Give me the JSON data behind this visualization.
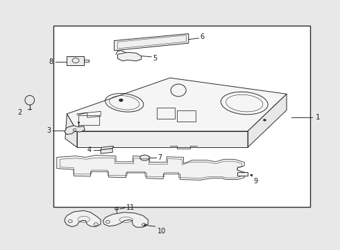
{
  "bg_color": "#e8e8e8",
  "line_color": "#2a2a2a",
  "text_color": "#1a1a1a",
  "fig_width": 4.9,
  "fig_height": 3.6,
  "dpi": 100,
  "border": [
    0.155,
    0.17,
    0.76,
    0.73
  ]
}
